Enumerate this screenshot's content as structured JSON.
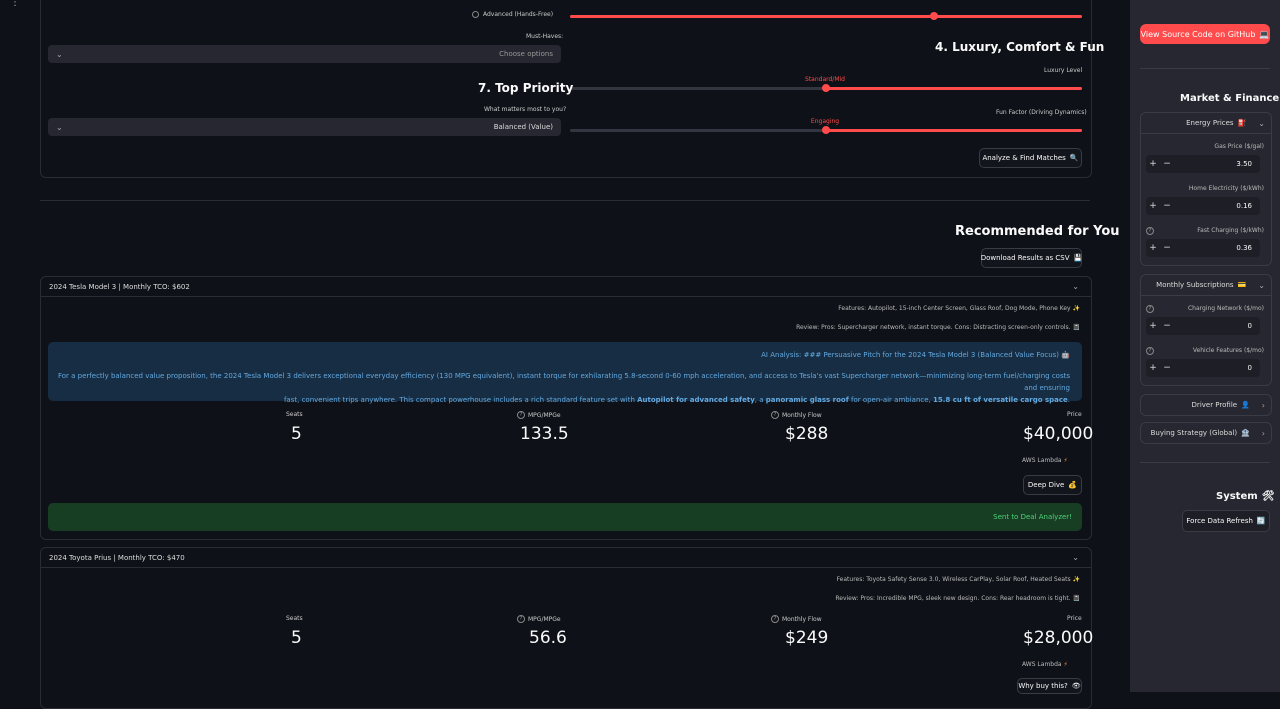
{
  "sidebar": {
    "github_button": "View Source Code on GitHub",
    "market_header": "Market & Finance",
    "energy_expander": "Energy Prices",
    "gas_label": "Gas Price ($/gal)",
    "gas_value": "3.50",
    "home_elec_label": "Home Electricity ($/kWh)",
    "home_elec_value": "0.16",
    "fast_charge_label": "Fast Charging ($/kWh)",
    "fast_charge_value": "0.36",
    "subs_expander": "Monthly Subscriptions",
    "charging_net_label": "Charging Network ($/mo)",
    "charging_net_value": "0",
    "vehicle_feat_label": "Vehicle Features ($/mo)",
    "vehicle_feat_value": "0",
    "driver_profile": "Driver Profile",
    "buying_strategy": "Buying Strategy (Global)",
    "system_header": "System",
    "refresh_button": "Force Data Refresh"
  },
  "form": {
    "advanced_option": "Advanced (Hands-Free)",
    "must_haves_label": "Must-Haves:",
    "must_haves_placeholder": "Choose options",
    "section_luxury": "4. Luxury, Comfort & Fun",
    "luxury_label": "Luxury Level",
    "luxury_value": "Standard/Mid",
    "luxury_level": 0.5,
    "fun_label": "Fun Factor (Driving Dynamics)",
    "fun_value": "Engaging",
    "fun_level": 0.5,
    "section_priority": "7. Top Priority",
    "priority_label": "What matters most to you?",
    "priority_value": "Balanced (Value)",
    "analyze_button": "Analyze & Find Matches"
  },
  "results": {
    "title": "Recommended for You",
    "download_button": "Download Results as CSV",
    "cards": [
      {
        "header": "2024 Tesla Model 3 | Monthly TCO: $602",
        "features": "Features: Autopilot, 15-inch Center Screen, Glass Roof, Dog Mode, Phone Key",
        "review": "Review: Pros: Supercharger network, instant torque. Cons: Distracting screen-only controls.",
        "ai_title": "AI Analysis: ### Persuasive Pitch for the 2024 Tesla Model 3 (Balanced Value Focus)",
        "ai_text_1": "For a perfectly balanced value proposition, the 2024 Tesla Model 3 delivers exceptional everyday efficiency (130 MPG equivalent), instant torque for exhilarating 5.8-second 0-60 mph acceleration, and access to Tesla's vast Supercharger network—minimizing long-term fuel/charging costs and ensuring",
        "ai_text_2": "fast, convenient trips anywhere. This compact powerhouse includes a rich standard feature set with ",
        "ai_bold_1": "Autopilot for advanced safety",
        "ai_text_3": ", a ",
        "ai_bold_2": "panoramic glass roof",
        "ai_text_4": " for open-air ambiance, ",
        "ai_bold_3": "15.8 cu ft of versatile cargo space",
        "ai_text_5": ".",
        "price_label": "Price",
        "price": "$40,000",
        "monthly_label": "Monthly Flow",
        "monthly": "$288",
        "mpg_label": "MPG/MPGe",
        "mpg": "133.5",
        "seats_label": "Seats",
        "seats": "5",
        "lambda": "AWS Lambda",
        "deep_dive": "Deep Dive",
        "success": "Sent to Deal Analyzer!"
      },
      {
        "header": "2024 Toyota Prius | Monthly TCO: $470",
        "features": "Features: Toyota Safety Sense 3.0, Wireless CarPlay, Solar Roof, Heated Seats",
        "review": "Review: Pros: Incredible MPG, sleek new design. Cons: Rear headroom is tight.",
        "price_label": "Price",
        "price": "$28,000",
        "monthly_label": "Monthly Flow",
        "monthly": "$249",
        "mpg_label": "MPG/MPGe",
        "mpg": "56.6",
        "seats_label": "Seats",
        "seats": "5",
        "lambda": "AWS Lambda",
        "why_button": "Why buy this?"
      }
    ]
  }
}
